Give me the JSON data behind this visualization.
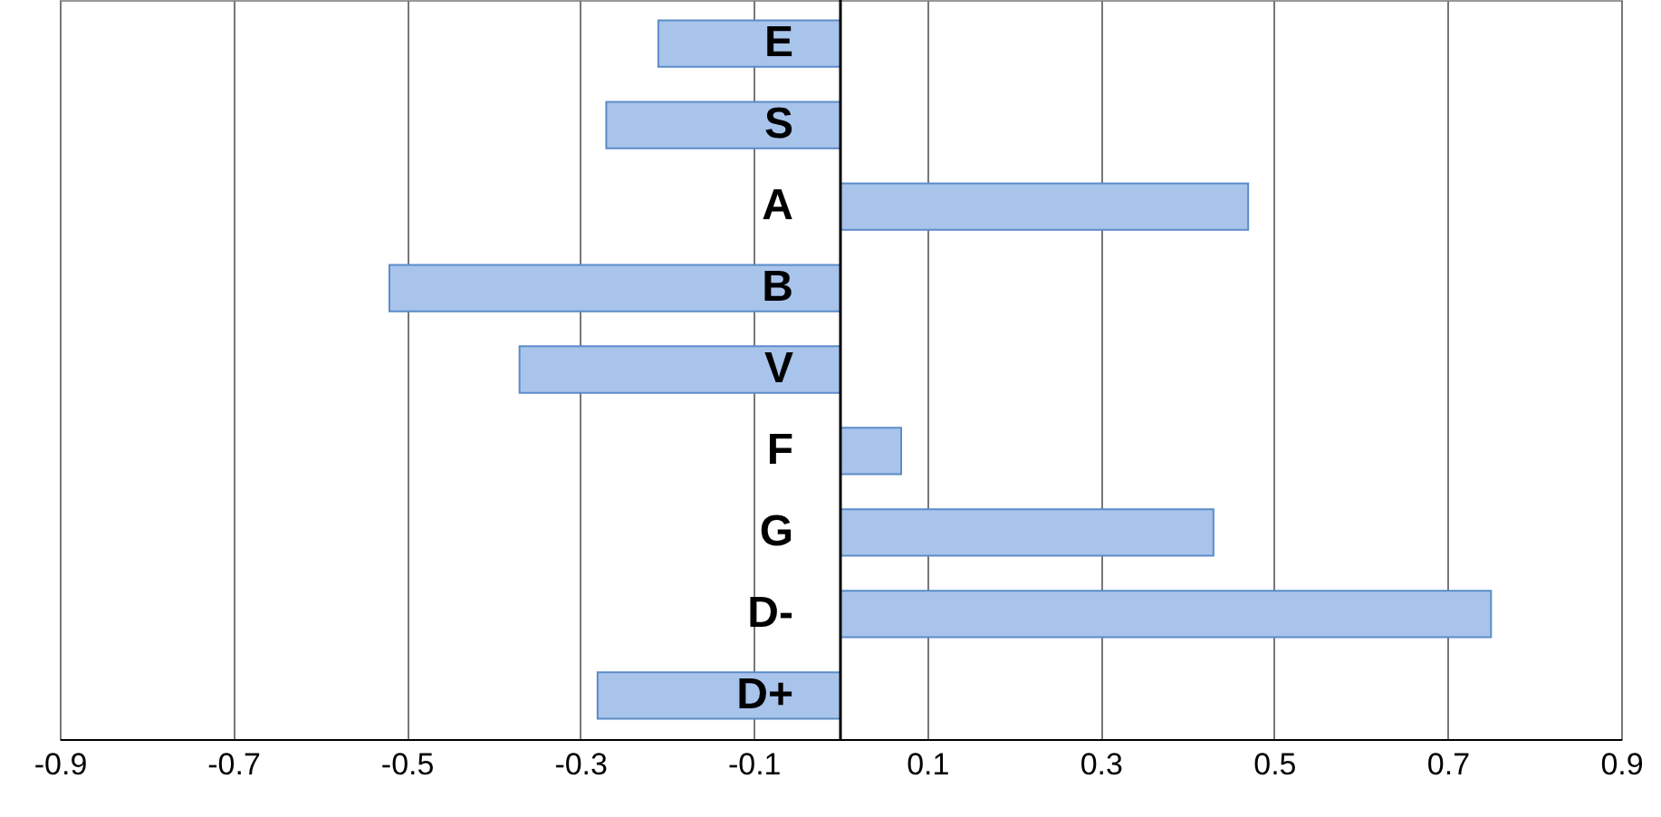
{
  "chart_data": {
    "type": "bar",
    "orientation": "horizontal",
    "categories": [
      "E",
      "S",
      "A",
      "B",
      "V",
      "F",
      "G",
      "D-",
      "D+"
    ],
    "values": [
      -0.21,
      -0.27,
      0.47,
      -0.52,
      -0.37,
      0.07,
      0.43,
      0.75,
      -0.28
    ],
    "color": "#a9c4eb",
    "xlim": [
      -0.9,
      0.9
    ],
    "xticks": [
      -0.9,
      -0.7,
      -0.5,
      -0.3,
      -0.1,
      0.1,
      0.3,
      0.5,
      0.7,
      0.9
    ],
    "grid": "x"
  }
}
